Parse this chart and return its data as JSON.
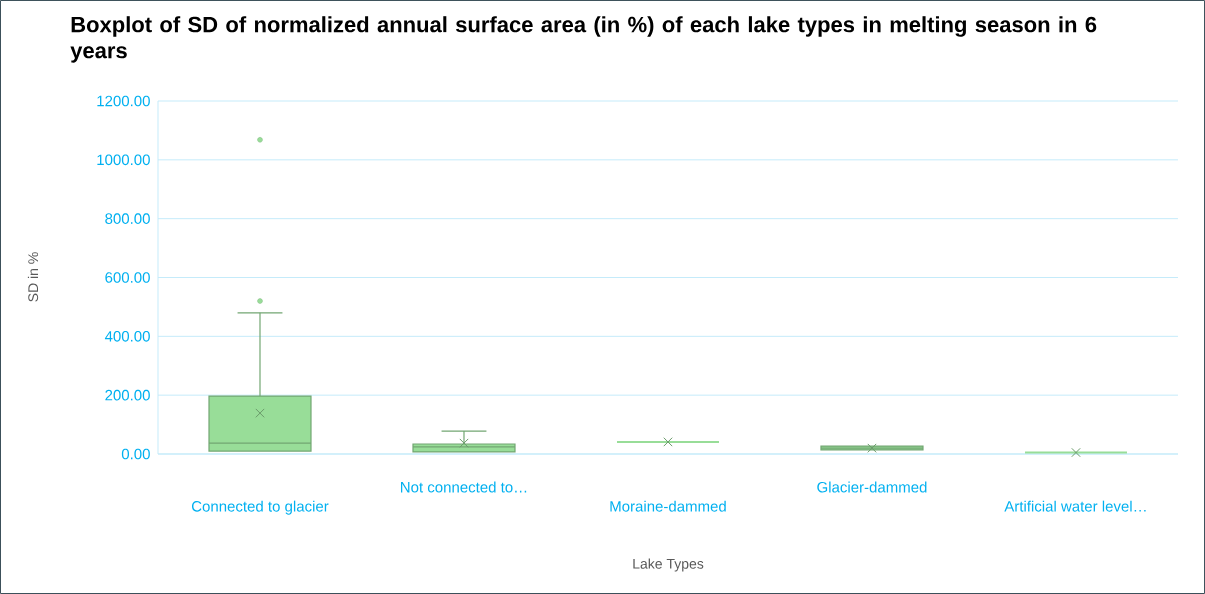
{
  "chart_data": {
    "type": "box",
    "title": "Boxplot of SD of normalized annual surface area (in %) of each lake types in melting season in 6 years",
    "xlabel": "Lake Types",
    "ylabel": "SD in %",
    "categories": [
      "Connected to glacier",
      "Not connected to…",
      "Moraine-dammed",
      "Glacier-dammed",
      "Artificial water level…"
    ],
    "color": "#98dd98",
    "boxes": [
      {
        "low": 10,
        "q1": 10,
        "median": 37,
        "q3": 197,
        "high": 480,
        "mean": 139,
        "outliers": [
          520,
          1068
        ]
      },
      {
        "low": 7,
        "q1": 7,
        "median": 24,
        "q3": 34,
        "high": 78,
        "mean": 37
      },
      {
        "low": 41,
        "q1": 41,
        "median": 41,
        "q3": 41,
        "high": 41,
        "mean": 41
      },
      {
        "low": 14,
        "q1": 14,
        "median": 20,
        "q3": 27,
        "high": 27,
        "mean": 20
      },
      {
        "low": 5,
        "q1": 5,
        "median": 5,
        "q3": 5,
        "high": 5,
        "mean": 5
      }
    ],
    "ylim": [
      0,
      1200
    ],
    "yticks": [
      {
        "value": 0,
        "label": "0.00"
      },
      {
        "value": 200,
        "label": "200.00"
      },
      {
        "value": 400,
        "label": "400.00"
      },
      {
        "value": 600,
        "label": "600.00"
      },
      {
        "value": 800,
        "label": "800.00"
      },
      {
        "value": 1000,
        "label": "1000.00"
      },
      {
        "value": 1200,
        "label": "1200.00"
      }
    ],
    "grid": "y"
  }
}
